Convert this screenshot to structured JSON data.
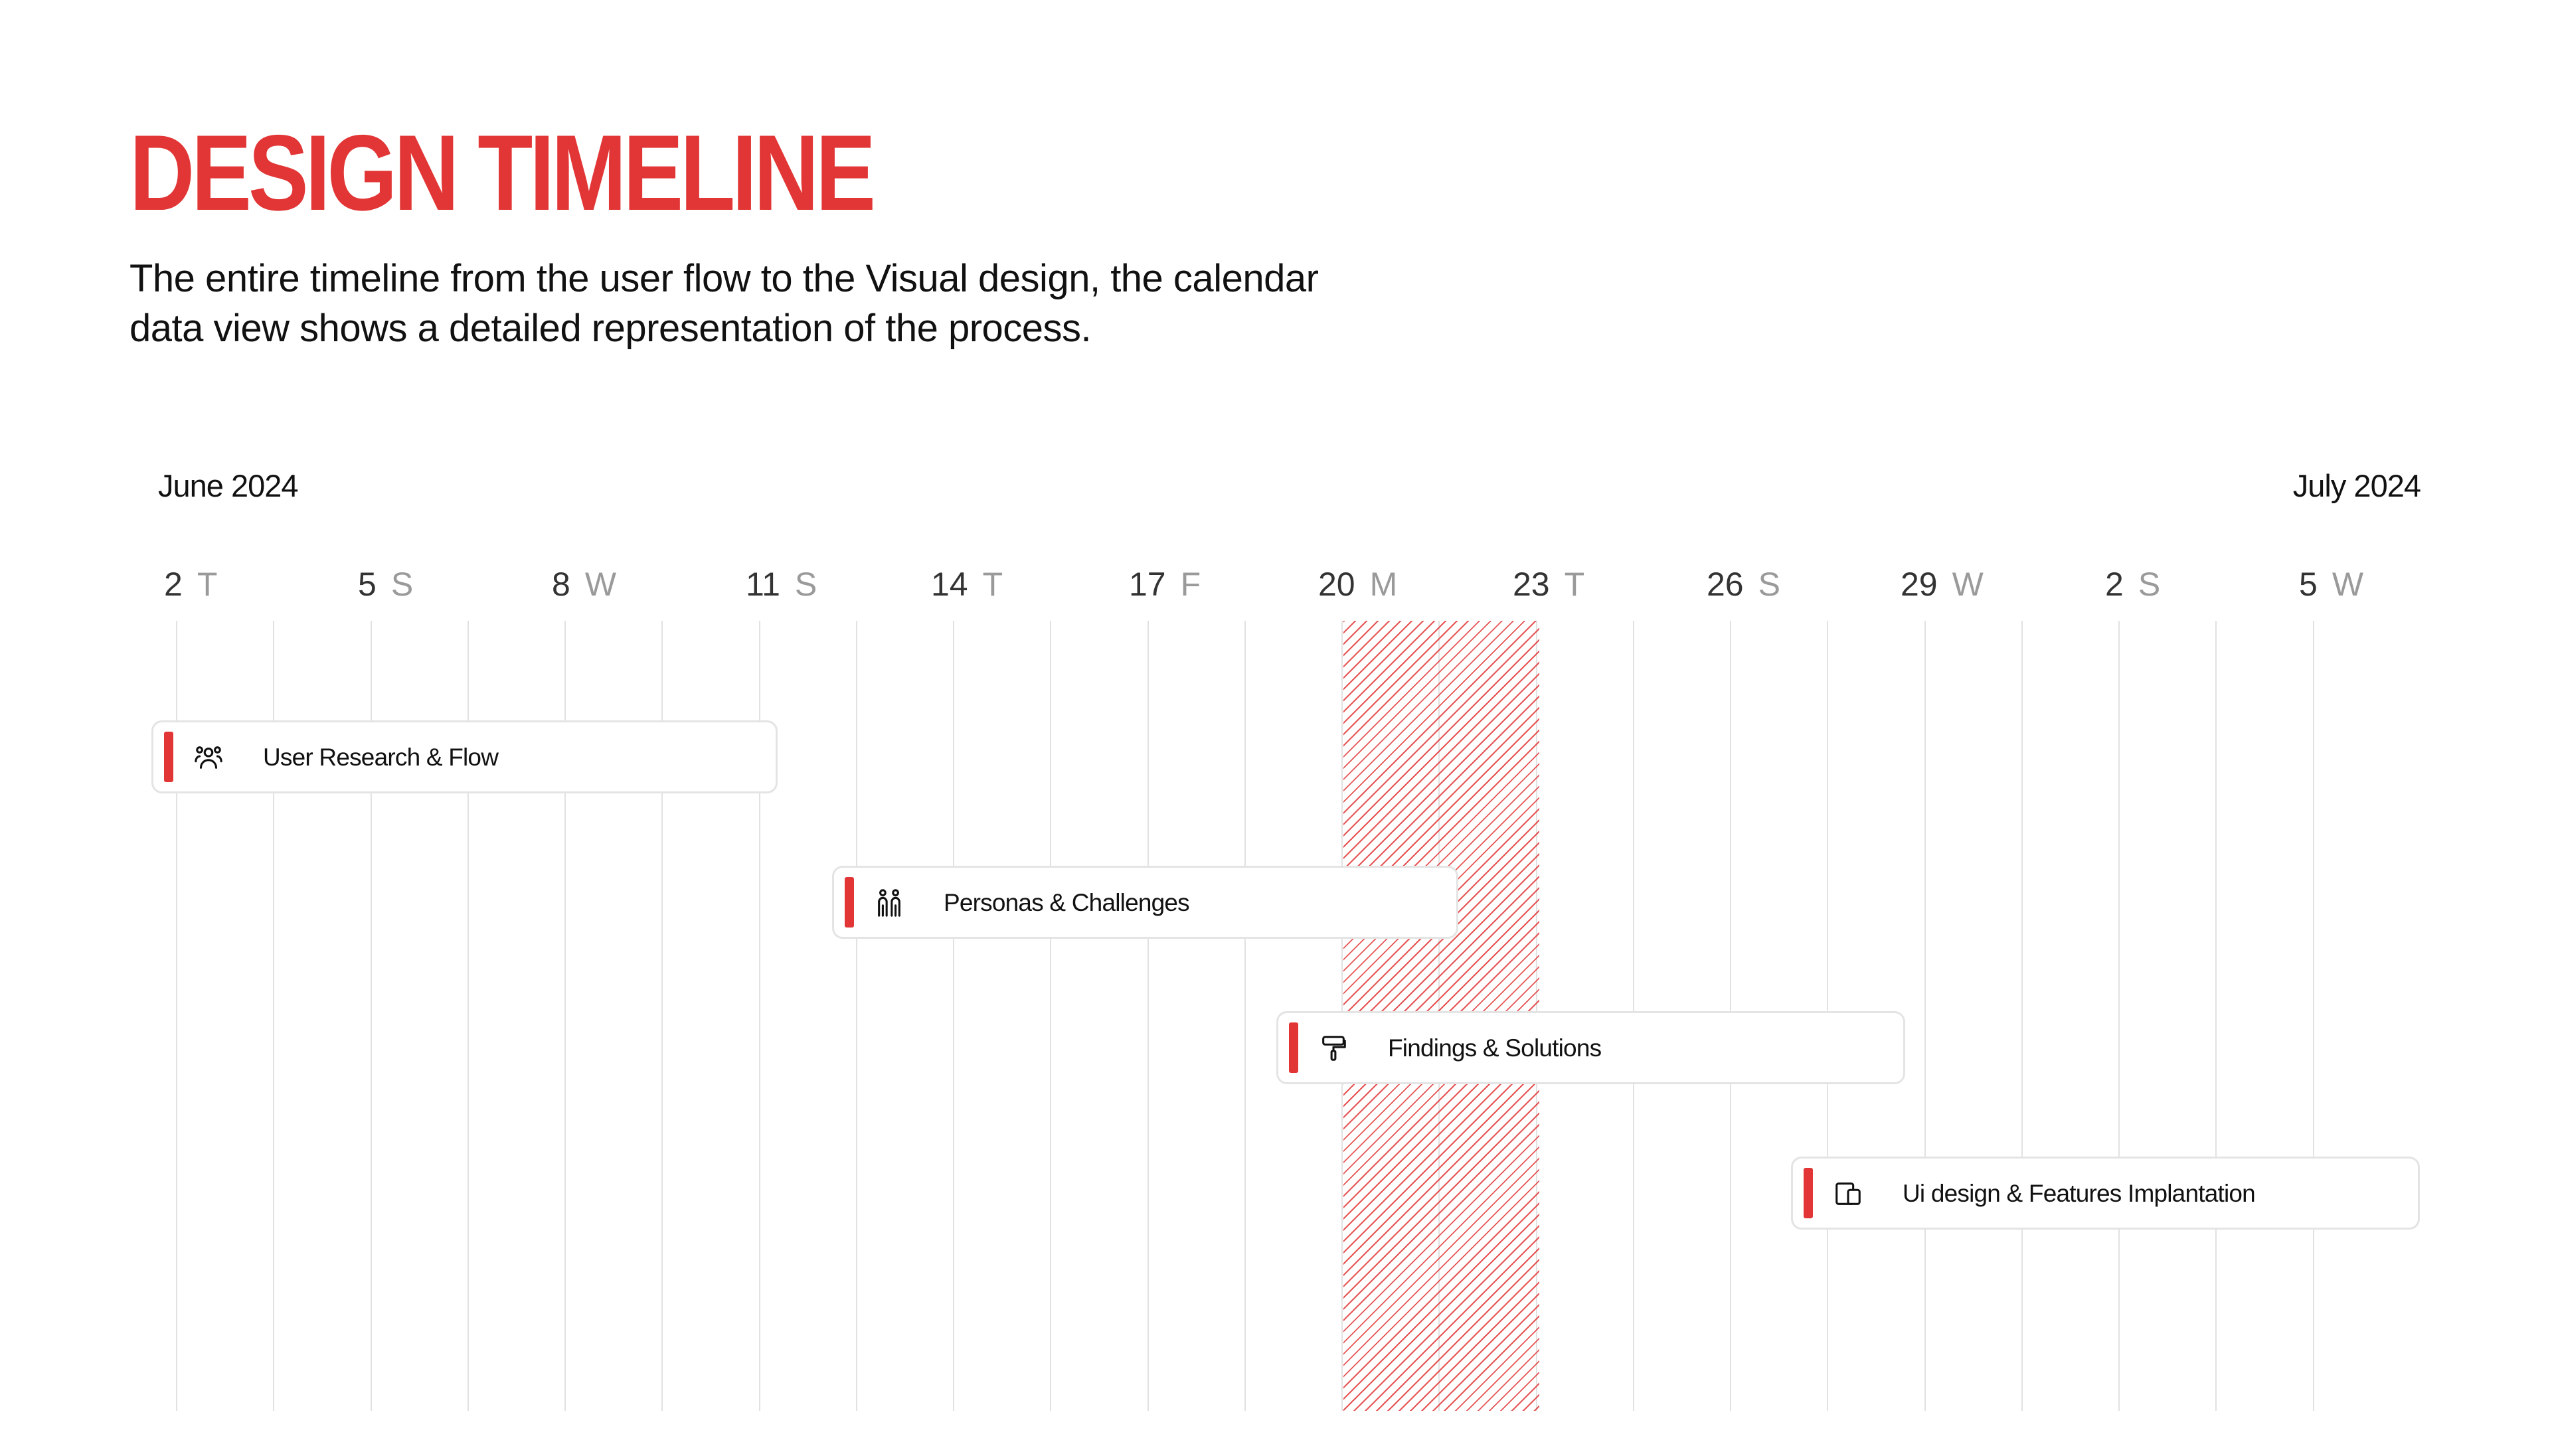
{
  "header": {
    "title": "DESIGN TIMELINE",
    "subtitle_line1": "The entire timeline from the user flow to the Visual design, the calendar",
    "subtitle_line2": "data view shows a detailed representation of the process."
  },
  "calendar": {
    "start_month": "June 2024",
    "end_month": "July 2024",
    "days": [
      {
        "num": "2",
        "abbr": "T"
      },
      {
        "num": "5",
        "abbr": "S"
      },
      {
        "num": "8",
        "abbr": "W"
      },
      {
        "num": "11",
        "abbr": "S"
      },
      {
        "num": "14",
        "abbr": "T"
      },
      {
        "num": "17",
        "abbr": "F"
      },
      {
        "num": "20",
        "abbr": "M"
      },
      {
        "num": "23",
        "abbr": "T"
      },
      {
        "num": "26",
        "abbr": "S"
      },
      {
        "num": "29",
        "abbr": "W"
      },
      {
        "num": "2",
        "abbr": "S"
      },
      {
        "num": "5",
        "abbr": "W"
      }
    ]
  },
  "tasks": [
    {
      "label": "User Research & Flow",
      "icon": "users-icon"
    },
    {
      "label": "Personas & Challenges",
      "icon": "people-icon"
    },
    {
      "label": "Findings & Solutions",
      "icon": "paint-roller-icon"
    },
    {
      "label": "Ui design & Features Implantation",
      "icon": "devices-icon"
    }
  ],
  "colors": {
    "accent": "#e23636",
    "grid": "#e2e2e2",
    "muted_text": "#9a9a9a"
  }
}
